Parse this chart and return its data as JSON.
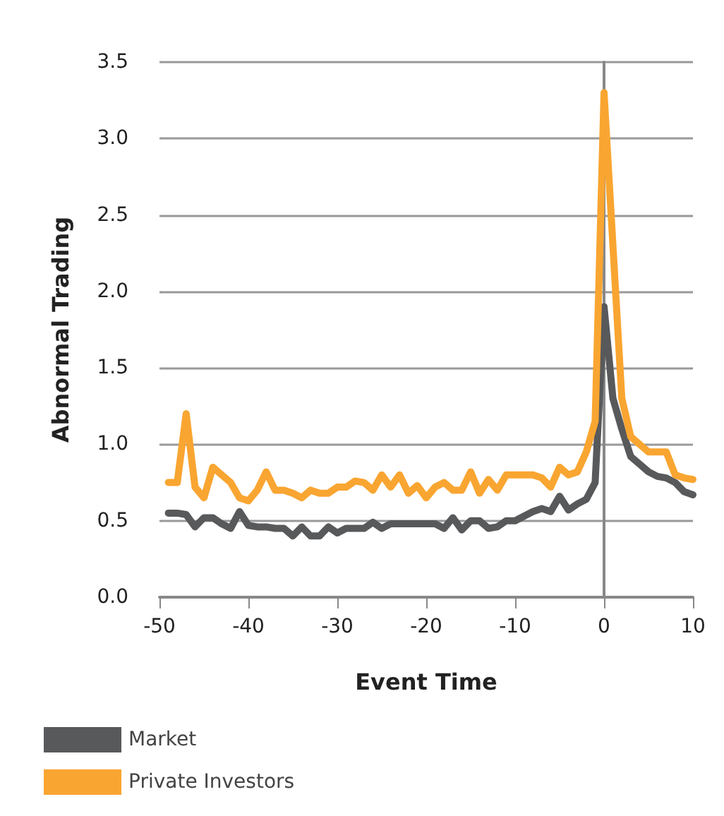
{
  "chart_data": {
    "type": "line",
    "x": [
      -49,
      -48,
      -47,
      -46,
      -45,
      -44,
      -43,
      -42,
      -41,
      -40,
      -39,
      -38,
      -37,
      -36,
      -35,
      -34,
      -33,
      -32,
      -31,
      -30,
      -29,
      -28,
      -27,
      -26,
      -25,
      -24,
      -23,
      -22,
      -21,
      -20,
      -19,
      -18,
      -17,
      -16,
      -15,
      -14,
      -13,
      -12,
      -11,
      -10,
      -9,
      -8,
      -7,
      -6,
      -5,
      -4,
      -3,
      -2,
      -1,
      0,
      1,
      2,
      3,
      4,
      5,
      6,
      7,
      8,
      9,
      10
    ],
    "series": [
      {
        "name": "Market",
        "color": "#58595b",
        "values": [
          0.55,
          0.55,
          0.54,
          0.46,
          0.52,
          0.52,
          0.48,
          0.45,
          0.56,
          0.47,
          0.46,
          0.46,
          0.45,
          0.45,
          0.4,
          0.46,
          0.4,
          0.4,
          0.46,
          0.42,
          0.45,
          0.45,
          0.45,
          0.49,
          0.45,
          0.48,
          0.48,
          0.48,
          0.48,
          0.48,
          0.48,
          0.45,
          0.52,
          0.44,
          0.5,
          0.5,
          0.45,
          0.46,
          0.5,
          0.5,
          0.53,
          0.56,
          0.58,
          0.56,
          0.66,
          0.57,
          0.61,
          0.64,
          0.75,
          1.9,
          1.3,
          1.1,
          0.92,
          0.87,
          0.82,
          0.79,
          0.78,
          0.75,
          0.69,
          0.67
        ]
      },
      {
        "name": "Private Investors",
        "color": "#f9a531",
        "values": [
          0.75,
          0.75,
          1.2,
          0.72,
          0.65,
          0.85,
          0.8,
          0.75,
          0.65,
          0.63,
          0.7,
          0.82,
          0.7,
          0.7,
          0.68,
          0.65,
          0.7,
          0.68,
          0.68,
          0.72,
          0.72,
          0.76,
          0.75,
          0.7,
          0.8,
          0.72,
          0.8,
          0.68,
          0.73,
          0.65,
          0.72,
          0.75,
          0.7,
          0.7,
          0.82,
          0.68,
          0.77,
          0.7,
          0.8,
          0.8,
          0.8,
          0.8,
          0.78,
          0.72,
          0.85,
          0.8,
          0.82,
          0.95,
          1.15,
          3.3,
          2.3,
          1.3,
          1.05,
          1.0,
          0.95,
          0.95,
          0.95,
          0.8,
          0.78,
          0.77
        ]
      }
    ],
    "xlabel": "Event Time",
    "ylabel": "Abnormal Trading",
    "xlim": [
      -50,
      10
    ],
    "xticks": [
      -50,
      -40,
      -30,
      -20,
      -10,
      0,
      10
    ],
    "ylim": [
      0,
      3.5
    ],
    "yticks": [
      {
        "value": 0,
        "label": "0.0"
      },
      {
        "value": 0.5,
        "label": "0.5"
      },
      {
        "value": 1,
        "label": "1.0"
      },
      {
        "value": 1.5,
        "label": "1.5"
      },
      {
        "value": 2,
        "label": "2.0"
      },
      {
        "value": 2.5,
        "label": "2.5"
      },
      {
        "value": 3,
        "label": "3.0"
      },
      {
        "value": 3.5,
        "label": "3.5"
      }
    ],
    "grid": "y",
    "legend": "bottom left",
    "marker": "none",
    "line_style": "solid"
  }
}
